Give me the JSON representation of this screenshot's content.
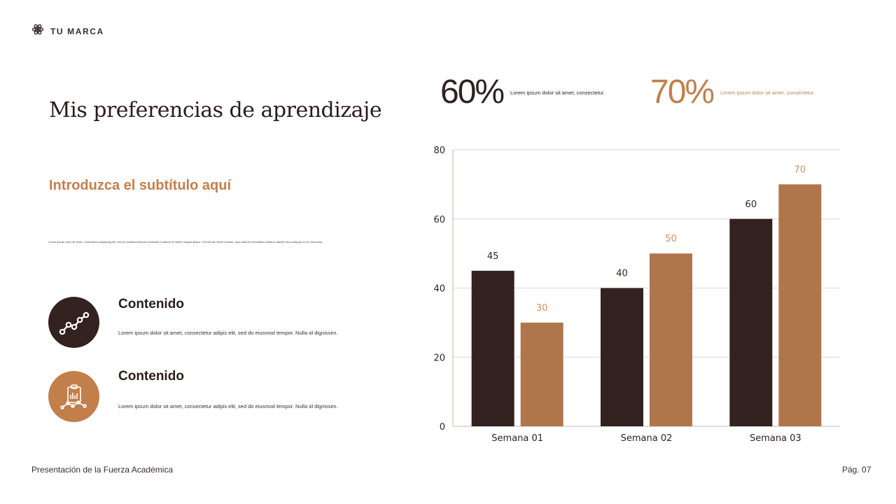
{
  "brand": {
    "name": "TU MARCA",
    "icon": "atom-gear-icon"
  },
  "title": "Mis preferencias de aprendizaje",
  "subtitle": "Introduzca el subtítulo aquí",
  "body_text": "Lorem ipsum dolor sit amet, consectetur adipiscing elit, sed do eiusmod tempor incididunt ut labore et dolore magna aliqua. Ut enim ad minim veniam, quis nostrud exercitation ullamco laboris nisi ut aliquip ex ea commodo.",
  "items": [
    {
      "title": "Contenido",
      "text": "Lorem ipsum dolor sit amet, consectetur adipis elit, sed do eiusmod tempor. Nulla id dignissim.",
      "icon": "trend-line-icon"
    },
    {
      "title": "Contenido",
      "text": "Lorem ipsum dolor sit amet, consectetur adipis elit, sed do eiusmod tempor. Nulla id dignissim.",
      "icon": "clipboard-chart-icon"
    }
  ],
  "stats": [
    {
      "value": "60%",
      "desc": "Lorem ipsum dolor sit amet, consectetur."
    },
    {
      "value": "70%",
      "desc": "Lorem ipsum dolor sit amet, consectetur."
    }
  ],
  "footer": {
    "left": "Presentación de la Fuerza Académica",
    "right": "Pág. 07"
  },
  "colors": {
    "dark": "#33221f",
    "accent": "#b0764b",
    "accent_text": "#c27f4b"
  },
  "chart_data": {
    "type": "bar",
    "categories": [
      "Semana 01",
      "Semana 02",
      "Semana 03"
    ],
    "series": [
      {
        "values": [
          45,
          40,
          60
        ],
        "color": "#33221f"
      },
      {
        "values": [
          30,
          50,
          70
        ],
        "color": "#b0764b"
      }
    ],
    "ylim": [
      0,
      80
    ],
    "yticks": [
      0,
      20,
      40,
      60,
      80
    ],
    "grid": true,
    "data_labels": true
  }
}
